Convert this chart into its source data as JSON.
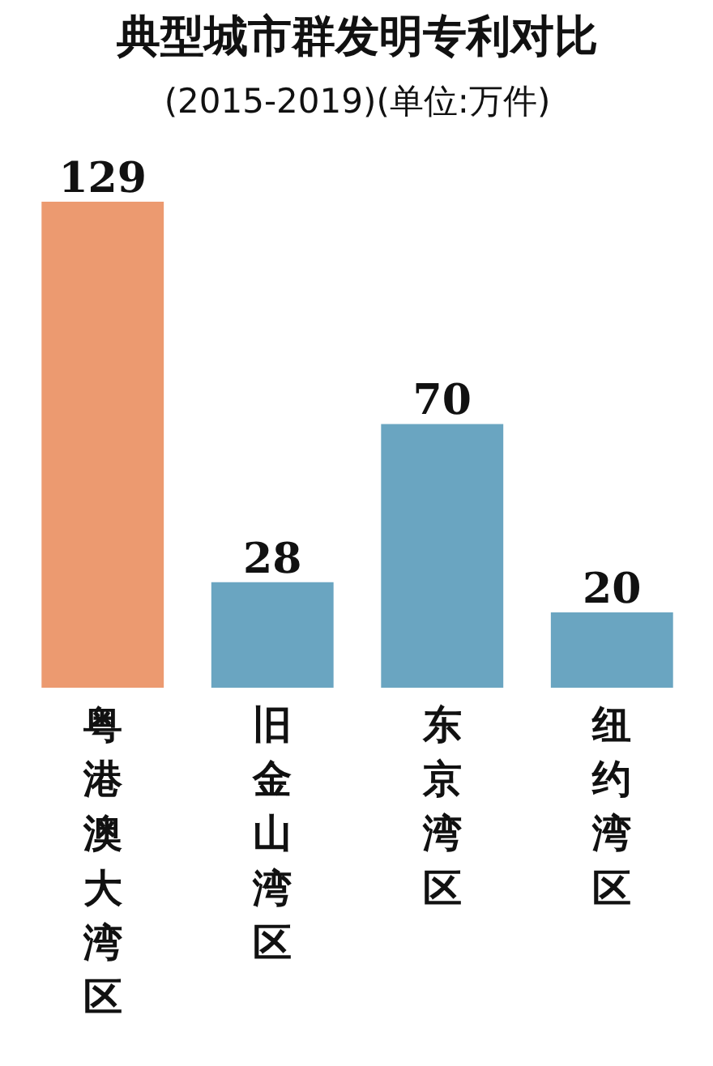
{
  "chart_data": {
    "type": "bar",
    "title": "典型城市群发明专利对比",
    "subtitle": "(2015-2019)(单位:万件)",
    "categories": [
      "粤港澳大湾区",
      "旧金山湾区",
      "东京湾区",
      "纽约湾区"
    ],
    "values": [
      129,
      28,
      70,
      20
    ],
    "colors": [
      "#ec9a70",
      "#6aa5c1",
      "#6aa5c1",
      "#6aa5c1"
    ],
    "data_labels": true,
    "grid": false
  }
}
